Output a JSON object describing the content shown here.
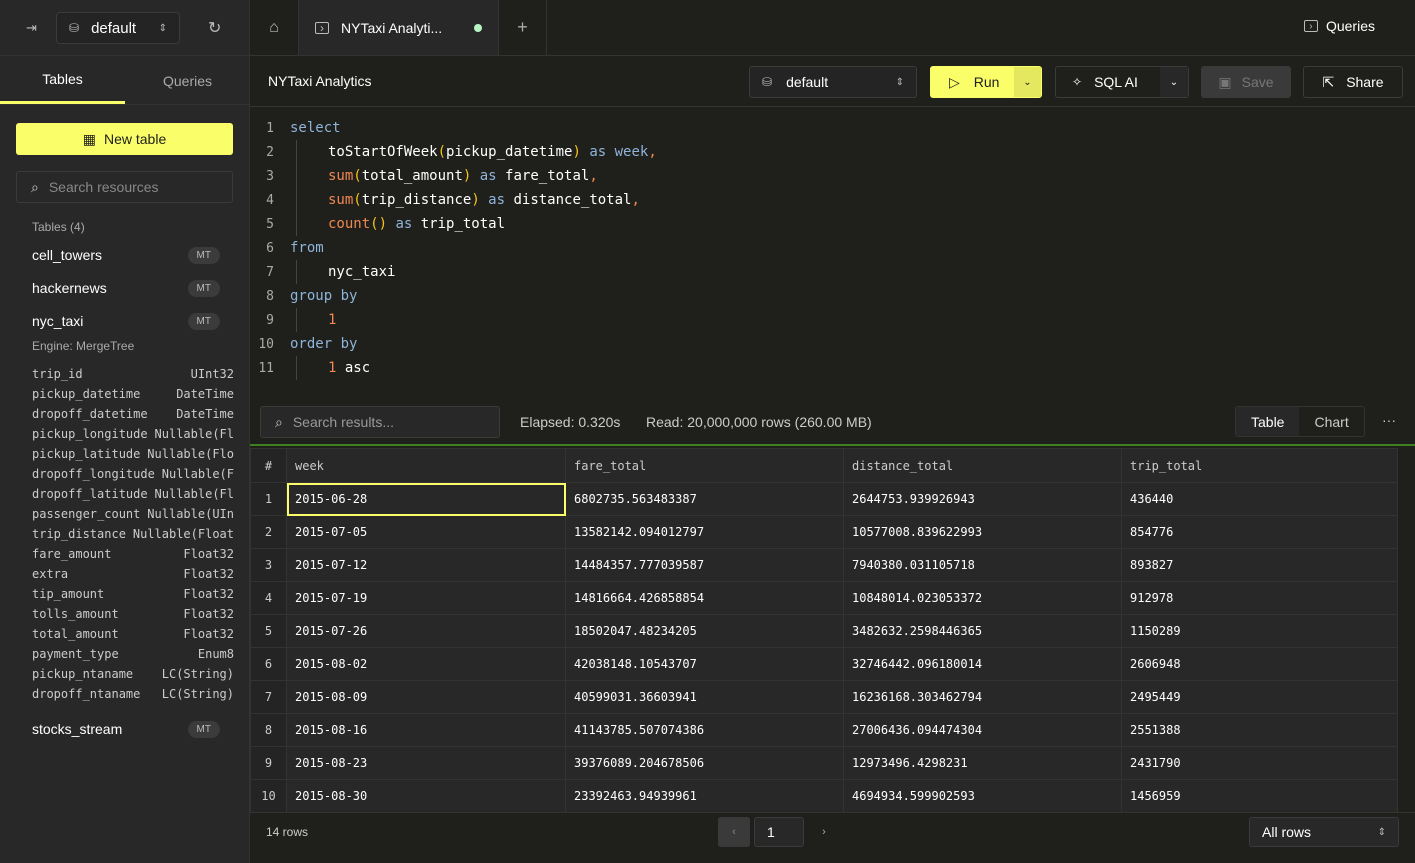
{
  "sidebar": {
    "database": "default",
    "tabs": [
      "Tables",
      "Queries"
    ],
    "new_table": "New table",
    "search_placeholder": "Search resources",
    "tables_label": "Tables (4)",
    "tables": [
      {
        "name": "cell_towers",
        "badge": "MT"
      },
      {
        "name": "hackernews",
        "badge": "MT"
      },
      {
        "name": "nyc_taxi",
        "badge": "MT"
      },
      {
        "name": "stocks_stream",
        "badge": "MT"
      }
    ],
    "engine": "Engine: MergeTree",
    "columns": [
      [
        "trip_id",
        "UInt32"
      ],
      [
        "pickup_datetime",
        "DateTime"
      ],
      [
        "dropoff_datetime",
        "DateTime"
      ],
      [
        "pickup_longitude",
        "Nullable(Fl"
      ],
      [
        "pickup_latitude",
        "Nullable(Flo"
      ],
      [
        "dropoff_longitude",
        "Nullable(F"
      ],
      [
        "dropoff_latitude",
        "Nullable(Fl"
      ],
      [
        "passenger_count",
        "Nullable(UIn"
      ],
      [
        "trip_distance",
        "Nullable(Float"
      ],
      [
        "fare_amount",
        "Float32"
      ],
      [
        "extra",
        "Float32"
      ],
      [
        "tip_amount",
        "Float32"
      ],
      [
        "tolls_amount",
        "Float32"
      ],
      [
        "total_amount",
        "Float32"
      ],
      [
        "payment_type",
        "Enum8"
      ],
      [
        "pickup_ntaname",
        "LC(String)"
      ],
      [
        "dropoff_ntaname",
        "LC(String)"
      ]
    ]
  },
  "tabbar": {
    "tab_title": "NYTaxi Analyti...",
    "queries": "Queries"
  },
  "header": {
    "title": "NYTaxi Analytics",
    "database": "default",
    "run": "Run",
    "sql_ai": "SQL AI",
    "save": "Save",
    "share": "Share"
  },
  "editor": {
    "lines": [
      [
        {
          "t": "select",
          "c": "k"
        }
      ],
      [
        {
          "t": "toStartOfWeek",
          "c": "i"
        },
        {
          "t": "(",
          "c": "p"
        },
        {
          "t": "pickup_datetime",
          "c": "i"
        },
        {
          "t": ")",
          "c": "p"
        },
        {
          "t": " as ",
          "c": "k"
        },
        {
          "t": "week",
          "c": "k"
        },
        {
          "t": ",",
          "c": "f"
        }
      ],
      [
        {
          "t": "sum",
          "c": "f"
        },
        {
          "t": "(",
          "c": "p"
        },
        {
          "t": "total_amount",
          "c": "i"
        },
        {
          "t": ")",
          "c": "p"
        },
        {
          "t": " as ",
          "c": "k"
        },
        {
          "t": "fare_total",
          "c": "i"
        },
        {
          "t": ",",
          "c": "f"
        }
      ],
      [
        {
          "t": "sum",
          "c": "f"
        },
        {
          "t": "(",
          "c": "p"
        },
        {
          "t": "trip_distance",
          "c": "i"
        },
        {
          "t": ")",
          "c": "p"
        },
        {
          "t": " as ",
          "c": "k"
        },
        {
          "t": "distance_total",
          "c": "i"
        },
        {
          "t": ",",
          "c": "f"
        }
      ],
      [
        {
          "t": "count",
          "c": "f"
        },
        {
          "t": "()",
          "c": "p"
        },
        {
          "t": " as ",
          "c": "k"
        },
        {
          "t": "trip_total",
          "c": "i"
        }
      ],
      [
        {
          "t": "from",
          "c": "k"
        }
      ],
      [
        {
          "t": "nyc_taxi",
          "c": "i"
        }
      ],
      [
        {
          "t": "group by",
          "c": "k"
        }
      ],
      [
        {
          "t": "1",
          "c": "n"
        }
      ],
      [
        {
          "t": "order by",
          "c": "k"
        }
      ],
      [
        {
          "t": "1",
          "c": "n"
        },
        {
          "t": " asc",
          "c": "i"
        }
      ]
    ],
    "indented": [
      false,
      true,
      true,
      true,
      true,
      false,
      true,
      false,
      true,
      false,
      true
    ]
  },
  "results": {
    "search_placeholder": "Search results...",
    "elapsed": "Elapsed: 0.320s",
    "read": "Read: 20,000,000 rows (260.00 MB)",
    "views": [
      "Table",
      "Chart"
    ],
    "more": "···",
    "columns": [
      "#",
      "week",
      "fare_total",
      "distance_total",
      "trip_total"
    ],
    "rows": [
      [
        "1",
        "2015-06-28",
        "6802735.563483387",
        "2644753.939926943",
        "436440"
      ],
      [
        "2",
        "2015-07-05",
        "13582142.094012797",
        "10577008.839622993",
        "854776"
      ],
      [
        "3",
        "2015-07-12",
        "14484357.777039587",
        "7940380.031105718",
        "893827"
      ],
      [
        "4",
        "2015-07-19",
        "14816664.426858854",
        "10848014.023053372",
        "912978"
      ],
      [
        "5",
        "2015-07-26",
        "18502047.48234205",
        "3482632.2598446365",
        "1150289"
      ],
      [
        "6",
        "2015-08-02",
        "42038148.10543707",
        "32746442.096180014",
        "2606948"
      ],
      [
        "7",
        "2015-08-09",
        "40599031.36603941",
        "16236168.303462794",
        "2495449"
      ],
      [
        "8",
        "2015-08-16",
        "41143785.507074386",
        "27006436.094474304",
        "2551388"
      ],
      [
        "9",
        "2015-08-23",
        "39376089.204678506",
        "12973496.4298231",
        "2431790"
      ],
      [
        "10",
        "2015-08-30",
        "23392463.94939961",
        "4694934.599902593",
        "1456959"
      ]
    ]
  },
  "footer": {
    "row_count": "14 rows",
    "page": "1",
    "rows_select": "All rows"
  },
  "colors": {
    "accent": "#faff69",
    "success": "#3f7f1f"
  }
}
